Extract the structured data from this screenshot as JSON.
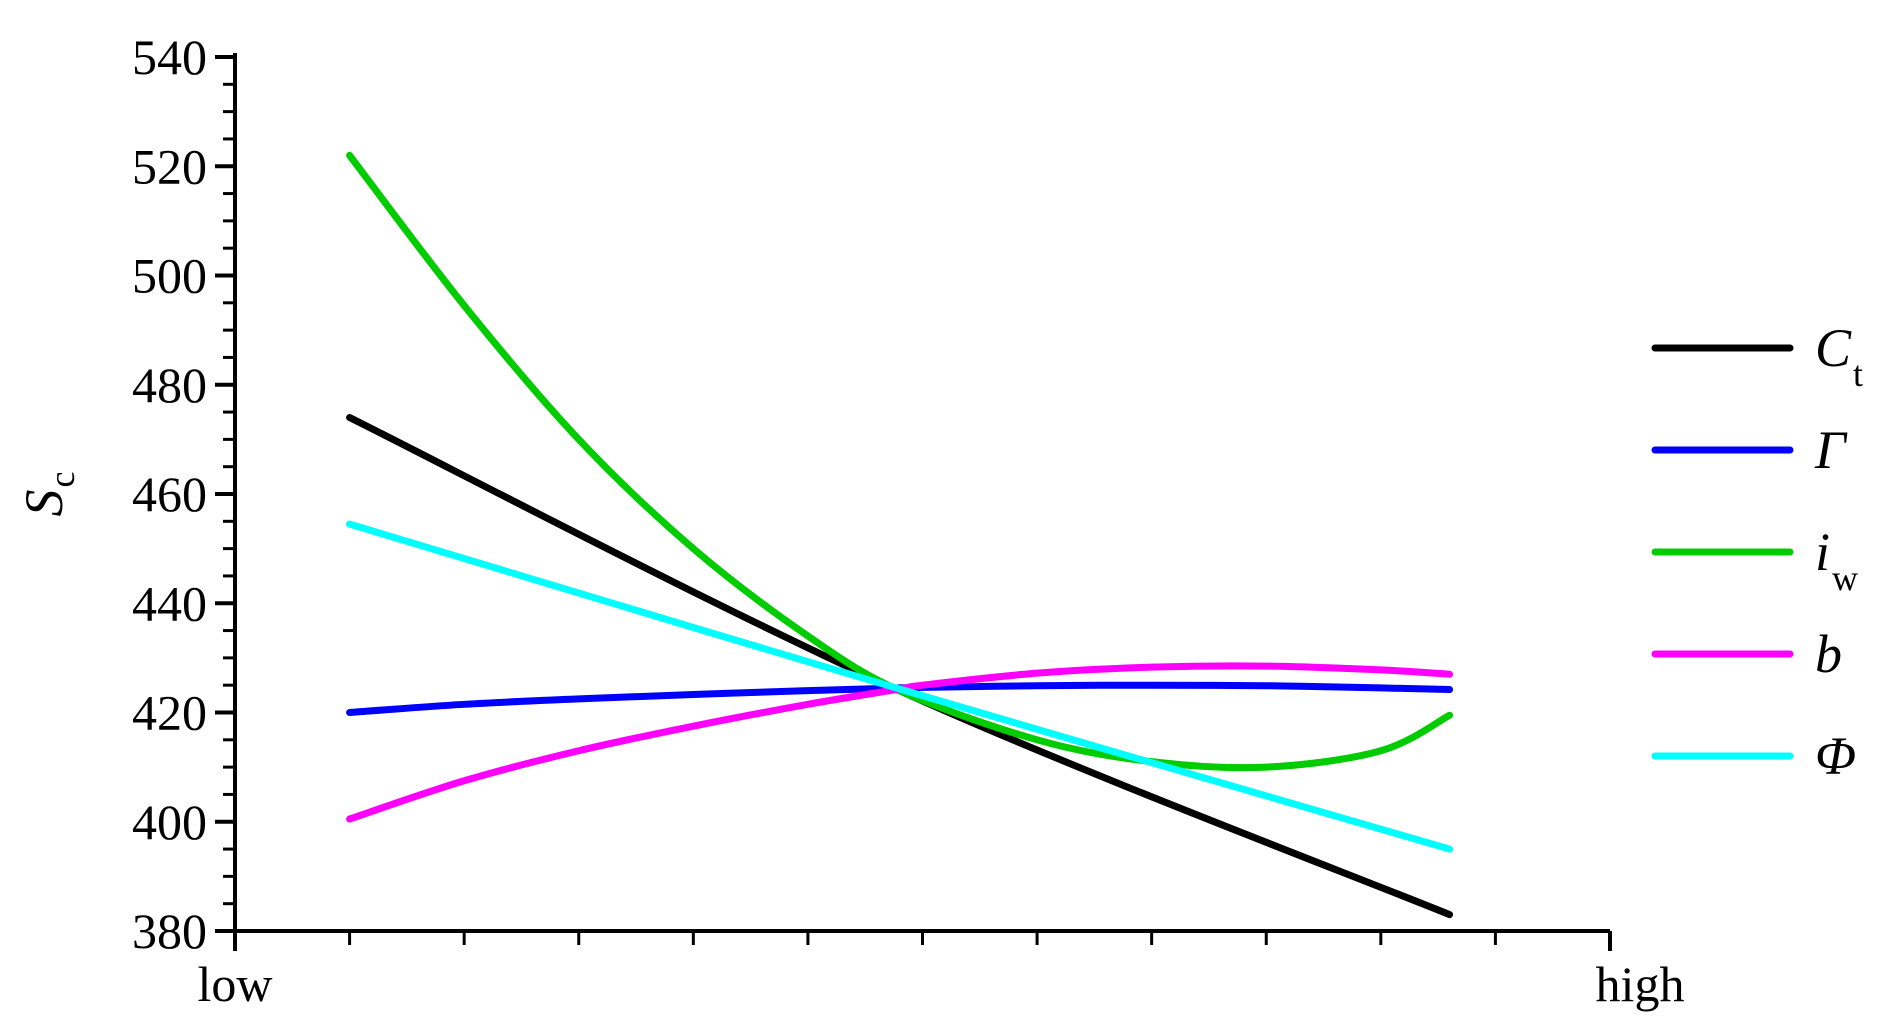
{
  "chart_data": {
    "type": "line",
    "ylabel": {
      "main": "S",
      "sub": "c"
    },
    "x_start_label": "low",
    "x_end_label": "high",
    "xlim": [
      0,
      12
    ],
    "ylim": [
      380,
      540
    ],
    "y_ticks": [
      380,
      400,
      420,
      440,
      460,
      480,
      500,
      520,
      540
    ],
    "y_minor_step": 5,
    "x_minor_ticks": [
      1,
      2,
      3,
      4,
      5,
      6,
      7,
      8,
      9,
      10,
      11
    ],
    "grid": false,
    "legend_position": "right",
    "series": [
      {
        "name": {
          "main": "C",
          "sub": "t"
        },
        "color": "#000000",
        "x": [
          1,
          5.8,
          10.6
        ],
        "y": [
          474,
          424,
          383
        ]
      },
      {
        "name": {
          "main": "Γ",
          "sub": ""
        },
        "color": "#0000ff",
        "x": [
          1,
          2,
          3,
          4,
          5,
          5.8,
          6,
          7,
          8,
          9,
          10,
          10.6
        ],
        "y": [
          420,
          421.5,
          422.5,
          423.3,
          424,
          424.5,
          424.6,
          424.9,
          425,
          424.9,
          424.5,
          424.2
        ]
      },
      {
        "name": {
          "main": "i",
          "sub": "w"
        },
        "color": "#00cc00",
        "x": [
          1,
          2,
          3,
          4,
          5,
          5.8,
          7,
          8,
          9,
          10,
          10.6
        ],
        "y": [
          522,
          494.5,
          470,
          450,
          434,
          424,
          415,
          411,
          410,
          413,
          419.5
        ]
      },
      {
        "name": {
          "main": "b",
          "sub": ""
        },
        "color": "#ff00ff",
        "x": [
          1,
          2,
          3,
          4,
          5,
          5.8,
          6,
          7,
          8,
          9,
          10,
          10.6
        ],
        "y": [
          400.5,
          407.5,
          413,
          417.5,
          421.5,
          424.3,
          425,
          427.2,
          428.3,
          428.5,
          427.8,
          427
        ]
      },
      {
        "name": {
          "main": "Φ",
          "sub": ""
        },
        "color": "#00ffff",
        "x": [
          1,
          5.8,
          10.6
        ],
        "y": [
          454.5,
          424.3,
          395
        ]
      }
    ]
  }
}
